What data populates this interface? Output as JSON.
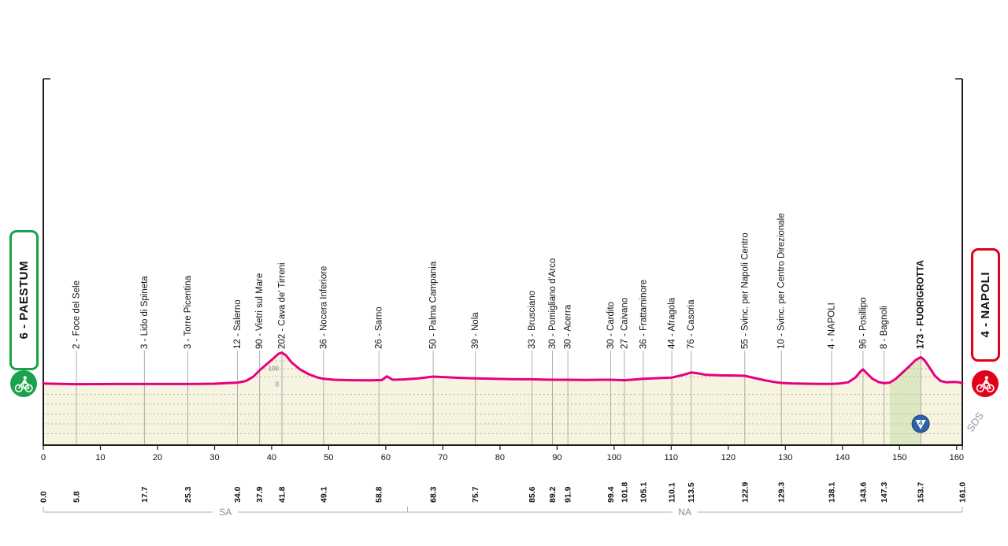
{
  "stage": {
    "start": {
      "label": "6 - PAESTUM",
      "accent": "#1ba24a"
    },
    "finish": {
      "label": "4 - NAPOLI",
      "accent": "#e2001a"
    }
  },
  "watermark": "SDS",
  "chart_data": {
    "type": "area",
    "x_unit": "km",
    "y_unit": "m",
    "x_range": [
      0,
      161
    ],
    "x_ticks": [
      0,
      10,
      20,
      30,
      40,
      50,
      60,
      70,
      80,
      90,
      100,
      110,
      120,
      130,
      140,
      150,
      160
    ],
    "elevation_scale_labels": [
      {
        "text": "100",
        "elev": 100
      },
      {
        "text": "0",
        "elev": 0
      }
    ],
    "colors": {
      "profile_line": "#e6007e",
      "area_fill": "#f6f4e1",
      "grid_dots": "#b9b894",
      "climb_band": "#dce8c2",
      "kom_badge": "#2e62a8",
      "axis": "#1a1a1a",
      "bracket": "#b0b0b0",
      "waypoint_line": "#9a9a9a"
    },
    "waypoints": [
      {
        "km": 0.0,
        "km_label": "0.0",
        "name": ""
      },
      {
        "km": 5.8,
        "km_label": "5.8",
        "name": "2 - Foce del Sele"
      },
      {
        "km": 17.7,
        "km_label": "17.7",
        "name": "3 - Lido di Spineta"
      },
      {
        "km": 25.3,
        "km_label": "25.3",
        "name": "3 - Torre Picentina"
      },
      {
        "km": 34.0,
        "km_label": "34.0",
        "name": "12 - Salerno"
      },
      {
        "km": 37.9,
        "km_label": "37.9",
        "name": "90 - Vietri sul Mare"
      },
      {
        "km": 41.8,
        "km_label": "41.8",
        "name": "202 - Cava de' Tirreni"
      },
      {
        "km": 49.1,
        "km_label": "49.1",
        "name": "36 - Nocera Inferiore"
      },
      {
        "km": 58.8,
        "km_label": "58.8",
        "name": "26 - Sarno"
      },
      {
        "km": 68.3,
        "km_label": "68.3",
        "name": "50 - Palma Campania"
      },
      {
        "km": 75.7,
        "km_label": "75.7",
        "name": "39 - Nola"
      },
      {
        "km": 85.6,
        "km_label": "85.6",
        "name": "33 - Brusciano"
      },
      {
        "km": 89.2,
        "km_label": "89.2",
        "name": "30 - Pomigliano d'Arco"
      },
      {
        "km": 91.9,
        "km_label": "91.9",
        "name": "30 - Acerra"
      },
      {
        "km": 99.4,
        "km_label": "99.4",
        "name": "30 - Cardito"
      },
      {
        "km": 101.8,
        "km_label": "101.8",
        "name": "27 - Caivano"
      },
      {
        "km": 105.1,
        "km_label": "105.1",
        "name": "36 - Frattaminore"
      },
      {
        "km": 110.1,
        "km_label": "110.1",
        "name": "44 - Afragola"
      },
      {
        "km": 113.5,
        "km_label": "113.5",
        "name": "76 - Casoria"
      },
      {
        "km": 122.9,
        "km_label": "122.9",
        "name": "55 - Svinc. per Napoli Centro"
      },
      {
        "km": 129.3,
        "km_label": "129.3",
        "name": "10 - Svinc. per Centro Direzionale"
      },
      {
        "km": 138.1,
        "km_label": "138.1",
        "name": "4 - NAPOLI"
      },
      {
        "km": 143.6,
        "km_label": "143.6",
        "name": "96 - Posillipo"
      },
      {
        "km": 147.3,
        "km_label": "147.3",
        "name": "8 - Bagnoli"
      },
      {
        "km": 153.7,
        "km_label": "153.7",
        "name": "173 - FUORIGROTTA",
        "bold": true
      },
      {
        "km": 161.0,
        "km_label": "161.0",
        "name": ""
      }
    ],
    "profile": [
      [
        0,
        6
      ],
      [
        3,
        4
      ],
      [
        5.8,
        2
      ],
      [
        12,
        3
      ],
      [
        17.7,
        3
      ],
      [
        25.3,
        3
      ],
      [
        30,
        5
      ],
      [
        34,
        12
      ],
      [
        35.5,
        22
      ],
      [
        36.8,
        50
      ],
      [
        37.9,
        90
      ],
      [
        39,
        125
      ],
      [
        40.3,
        165
      ],
      [
        41.2,
        195
      ],
      [
        41.8,
        202
      ],
      [
        42.5,
        185
      ],
      [
        43.5,
        140
      ],
      [
        45,
        95
      ],
      [
        46.5,
        65
      ],
      [
        48,
        45
      ],
      [
        49.1,
        36
      ],
      [
        51,
        30
      ],
      [
        54,
        27
      ],
      [
        57.5,
        26
      ],
      [
        59.3,
        28
      ],
      [
        60.2,
        52
      ],
      [
        61.2,
        30
      ],
      [
        63,
        32
      ],
      [
        65.5,
        38
      ],
      [
        68.3,
        50
      ],
      [
        70.5,
        46
      ],
      [
        73,
        42
      ],
      [
        75.7,
        39
      ],
      [
        79,
        36
      ],
      [
        82,
        34
      ],
      [
        85.6,
        33
      ],
      [
        87.5,
        31
      ],
      [
        89.2,
        30
      ],
      [
        91.9,
        30
      ],
      [
        95,
        29
      ],
      [
        97.5,
        30
      ],
      [
        99.4,
        30
      ],
      [
        101.8,
        27
      ],
      [
        103.5,
        31
      ],
      [
        105.1,
        36
      ],
      [
        107.5,
        40
      ],
      [
        110.1,
        44
      ],
      [
        111.8,
        58
      ],
      [
        113.5,
        76
      ],
      [
        114.5,
        72
      ],
      [
        116,
        62
      ],
      [
        118.5,
        58
      ],
      [
        121,
        57
      ],
      [
        122.9,
        55
      ],
      [
        124.5,
        42
      ],
      [
        126.5,
        26
      ],
      [
        128,
        16
      ],
      [
        129.3,
        10
      ],
      [
        131,
        7
      ],
      [
        133.5,
        5
      ],
      [
        136,
        4
      ],
      [
        138.1,
        4
      ],
      [
        139.5,
        6
      ],
      [
        141,
        14
      ],
      [
        142.3,
        45
      ],
      [
        143.2,
        85
      ],
      [
        143.6,
        96
      ],
      [
        144.3,
        70
      ],
      [
        145.2,
        38
      ],
      [
        146.3,
        16
      ],
      [
        147.3,
        8
      ],
      [
        148.3,
        12
      ],
      [
        149.3,
        35
      ],
      [
        150.5,
        75
      ],
      [
        151.7,
        115
      ],
      [
        152.8,
        155
      ],
      [
        153.7,
        173
      ],
      [
        154.3,
        158
      ],
      [
        155.2,
        110
      ],
      [
        156.2,
        55
      ],
      [
        157.2,
        22
      ],
      [
        158.2,
        14
      ],
      [
        159.5,
        16
      ],
      [
        160.5,
        14
      ],
      [
        161,
        6
      ]
    ],
    "climb_band": {
      "from_km": 148.3,
      "to_km": 153.7
    },
    "kom": {
      "km": 153.7,
      "category": "4"
    },
    "regions": [
      {
        "label": "SA",
        "from_km": 0,
        "to_km": 63.8
      },
      {
        "label": "NA",
        "from_km": 63.8,
        "to_km": 161
      }
    ]
  }
}
